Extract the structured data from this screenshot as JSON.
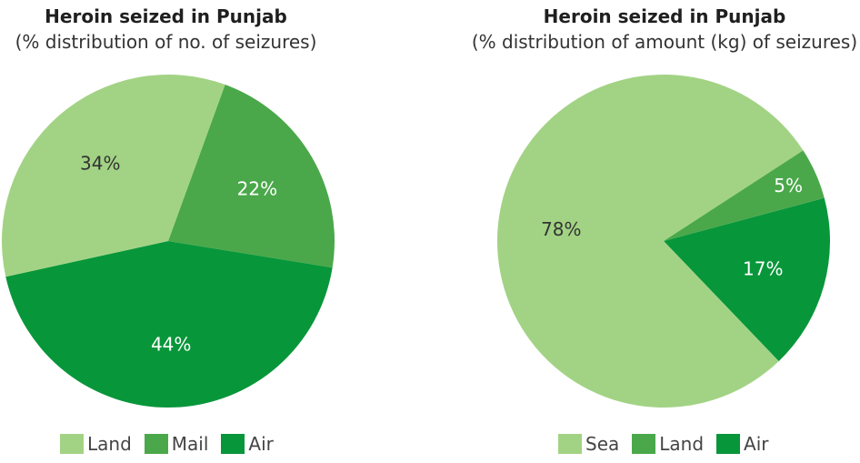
{
  "chart_data": [
    {
      "type": "pie",
      "title": "Heroin seized in Punjab",
      "subtitle": "(% distribution of no. of seizures)",
      "slices": [
        {
          "label": "Mail",
          "value": 22,
          "display": "22%",
          "color": "#4aa84a"
        },
        {
          "label": "Air",
          "value": 44,
          "display": "44%",
          "color": "#08963a"
        },
        {
          "label": "Land",
          "value": 34,
          "display": "34%",
          "color": "#a2d384"
        }
      ],
      "start_angle_deg": -70,
      "legend_position": "bottom",
      "legend": [
        {
          "label": "Land",
          "color": "#a2d384"
        },
        {
          "label": "Mail",
          "color": "#4aa84a"
        },
        {
          "label": "Air",
          "color": "#08963a"
        }
      ]
    },
    {
      "type": "pie",
      "title": "Heroin seized in Punjab",
      "subtitle": "(% distribution of amount (kg) of seizures)",
      "slices": [
        {
          "label": "Air",
          "value": 17,
          "display": "17%",
          "color": "#08963a"
        },
        {
          "label": "Sea",
          "value": 78,
          "display": "78%",
          "color": "#a2d384"
        },
        {
          "label": "Land",
          "value": 5,
          "display": "5%",
          "color": "#4aa84a"
        }
      ],
      "start_angle_deg": -15,
      "legend_position": "bottom",
      "legend": [
        {
          "label": "Sea",
          "color": "#a2d384"
        },
        {
          "label": "Land",
          "color": "#4aa84a"
        },
        {
          "label": "Air",
          "color": "#08963a"
        }
      ]
    }
  ]
}
